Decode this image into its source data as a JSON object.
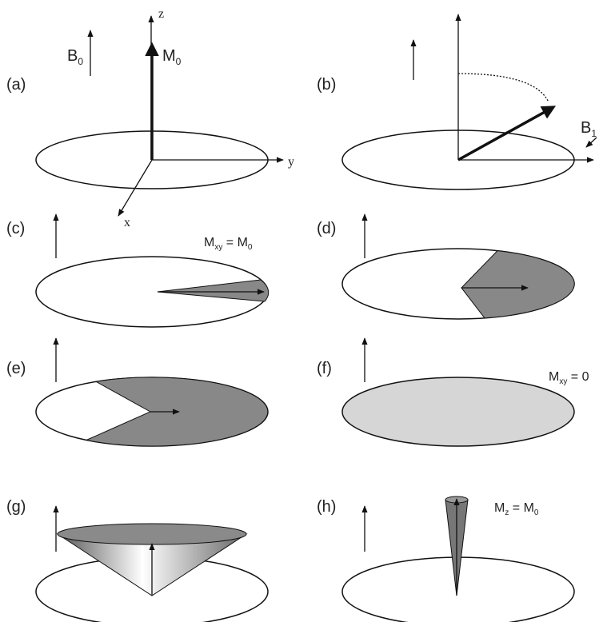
{
  "panels": [
    {
      "label": "(a)"
    },
    {
      "label": "(b)"
    },
    {
      "label": "(c)"
    },
    {
      "label": "(d)"
    },
    {
      "label": "(e)"
    },
    {
      "label": "(f)"
    },
    {
      "label": "(g)"
    },
    {
      "label": "(h)"
    }
  ],
  "annotations": {
    "b0": {
      "base": "B",
      "sub": "0"
    },
    "m0": {
      "base": "M",
      "sub": "0"
    },
    "axis_z": "z",
    "axis_y": "y",
    "axis_x": "x",
    "b1": {
      "base": "B",
      "sub": "1"
    },
    "mxy_m0": {
      "base": "M",
      "sub": "xy",
      "rest": " = M",
      "sub2": "0"
    },
    "mxy_0": {
      "base": "M",
      "sub": "xy",
      "rest": " = 0"
    },
    "mz_m0": {
      "base": "M",
      "sub": "z",
      "rest": " = M",
      "sub2": "0"
    }
  }
}
